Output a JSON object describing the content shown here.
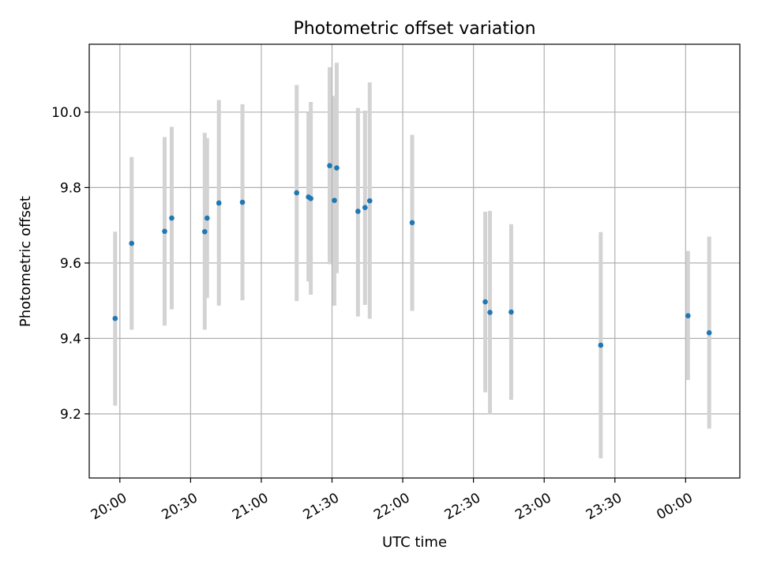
{
  "chart_data": {
    "type": "scatter",
    "title": "Photometric offset variation",
    "xlabel": "UTC time",
    "ylabel": "Photometric offset",
    "x_ticks": [
      "20:00",
      "20:30",
      "21:00",
      "21:30",
      "22:00",
      "22:30",
      "23:00",
      "23:30",
      "00:00"
    ],
    "y_ticks": [
      "9.2",
      "9.4",
      "9.6",
      "9.8",
      "10.0"
    ],
    "x_tick_values": [
      "20:00",
      "20:30",
      "21:00",
      "21:30",
      "22:00",
      "22:30",
      "23:00",
      "23:30",
      "00:00"
    ],
    "y_tick_values": [
      9.2,
      9.4,
      9.6,
      9.8,
      10.0
    ],
    "xlim": [
      "19:47",
      "00:23"
    ],
    "ylim": [
      9.03,
      10.18
    ],
    "grid": true,
    "colors": {
      "point": "#1f77b4",
      "errorbar": "#d3d3d3",
      "grid": "#b0b0b0"
    },
    "series": [
      {
        "points": [
          {
            "x": "19:58",
            "y": 9.453,
            "ylo": 9.222,
            "yhi": 9.683
          },
          {
            "x": "20:05",
            "y": 9.652,
            "ylo": 9.423,
            "yhi": 9.881
          },
          {
            "x": "20:19",
            "y": 9.684,
            "ylo": 9.434,
            "yhi": 9.934
          },
          {
            "x": "20:22",
            "y": 9.719,
            "ylo": 9.477,
            "yhi": 9.961
          },
          {
            "x": "20:36",
            "y": 9.683,
            "ylo": 9.423,
            "yhi": 9.945
          },
          {
            "x": "20:37",
            "y": 9.719,
            "ylo": 9.507,
            "yhi": 9.931
          },
          {
            "x": "20:42",
            "y": 9.759,
            "ylo": 9.487,
            "yhi": 10.032
          },
          {
            "x": "20:52",
            "y": 9.761,
            "ylo": 9.501,
            "yhi": 10.021
          },
          {
            "x": "21:15",
            "y": 9.786,
            "ylo": 9.499,
            "yhi": 10.072
          },
          {
            "x": "21:20",
            "y": 9.775,
            "ylo": 9.551,
            "yhi": 9.999
          },
          {
            "x": "21:21",
            "y": 9.771,
            "ylo": 9.516,
            "yhi": 10.027
          },
          {
            "x": "21:29",
            "y": 9.858,
            "ylo": 9.597,
            "yhi": 10.119
          },
          {
            "x": "21:31",
            "y": 9.766,
            "ylo": 9.487,
            "yhi": 10.043
          },
          {
            "x": "21:32",
            "y": 9.852,
            "ylo": 9.573,
            "yhi": 10.131
          },
          {
            "x": "21:41",
            "y": 9.737,
            "ylo": 9.458,
            "yhi": 10.011
          },
          {
            "x": "21:44",
            "y": 9.747,
            "ylo": 9.489,
            "yhi": 10.004
          },
          {
            "x": "21:46",
            "y": 9.765,
            "ylo": 9.452,
            "yhi": 10.079
          },
          {
            "x": "22:04",
            "y": 9.707,
            "ylo": 9.473,
            "yhi": 9.94
          },
          {
            "x": "22:35",
            "y": 9.497,
            "ylo": 9.257,
            "yhi": 9.736
          },
          {
            "x": "22:37",
            "y": 9.469,
            "ylo": 9.2,
            "yhi": 9.738
          },
          {
            "x": "22:46",
            "y": 9.47,
            "ylo": 9.237,
            "yhi": 9.703
          },
          {
            "x": "23:24",
            "y": 9.382,
            "ylo": 9.082,
            "yhi": 9.682
          },
          {
            "x": "00:01",
            "y": 9.46,
            "ylo": 9.29,
            "yhi": 9.632
          },
          {
            "x": "00:10",
            "y": 9.415,
            "ylo": 9.161,
            "yhi": 9.67
          }
        ]
      }
    ]
  }
}
